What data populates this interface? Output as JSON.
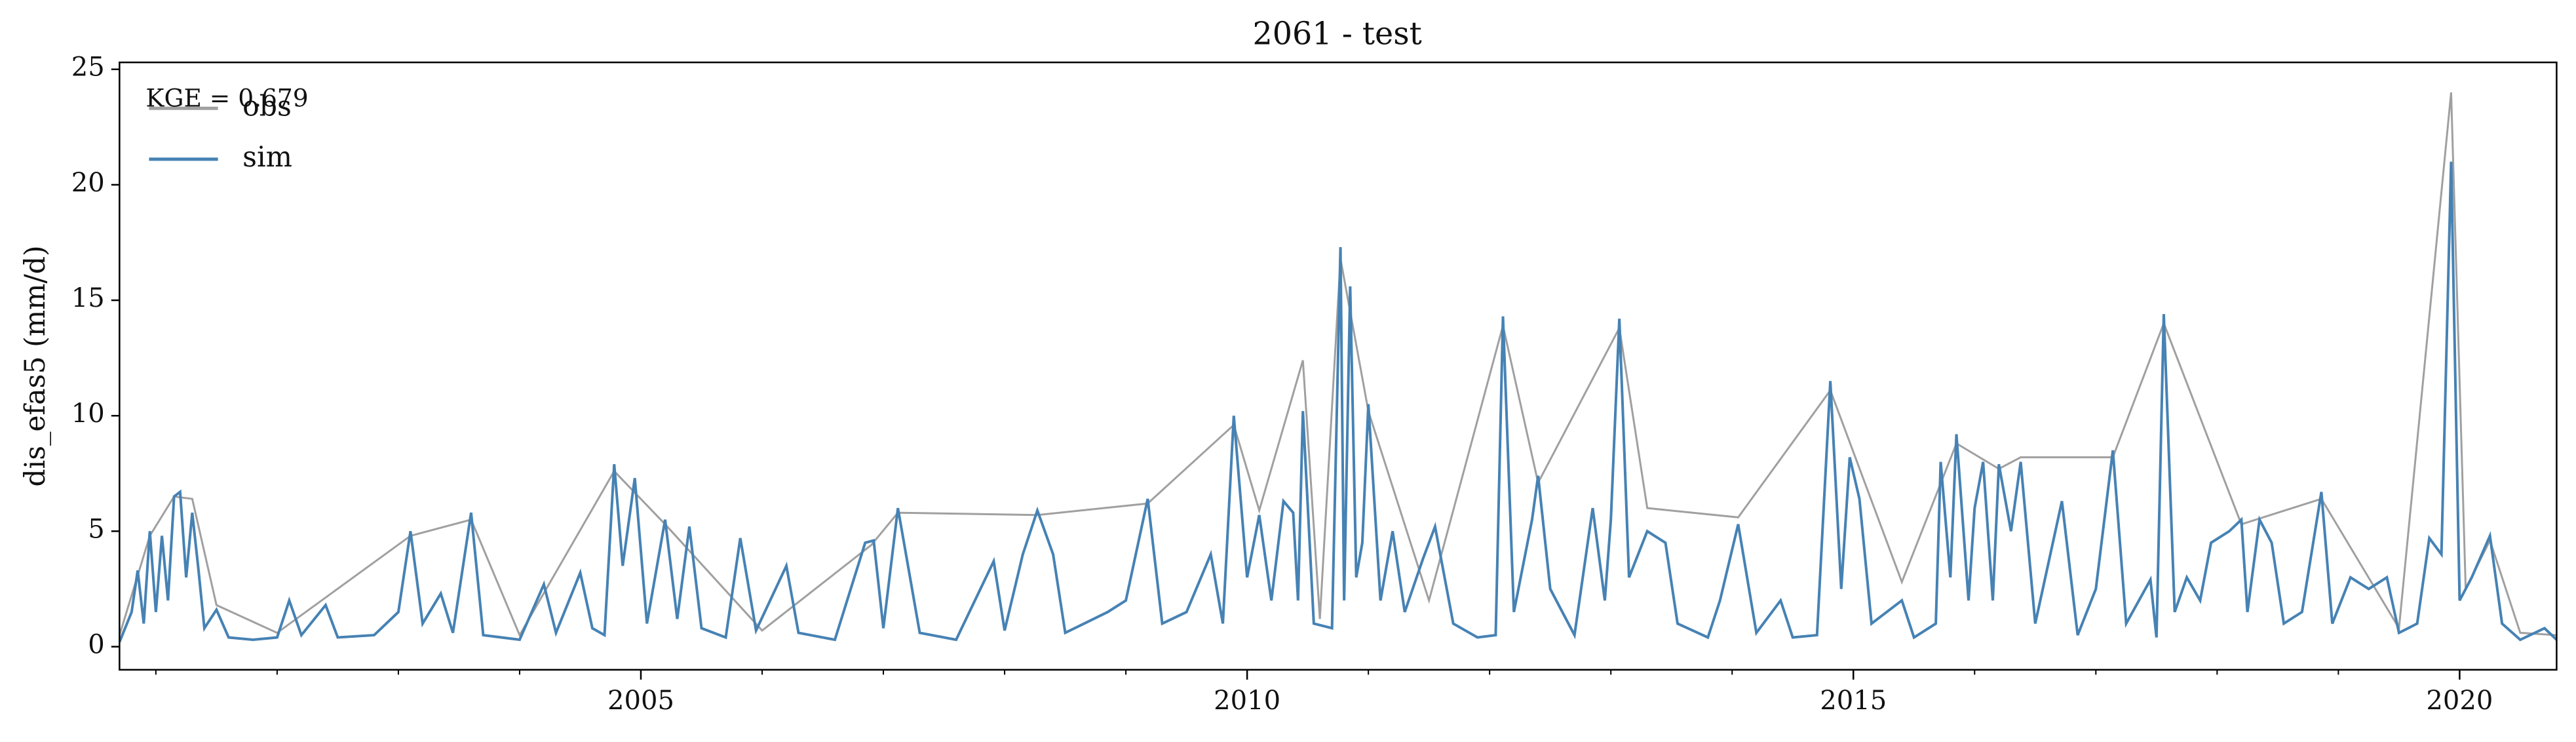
{
  "chart_data": {
    "type": "line",
    "title": "2061 - test",
    "ylabel": "dis_efas5 (mm/d)",
    "annotation": "KGE = 0.679",
    "legend": "upper left",
    "xlim": [
      2000.7,
      2020.8
    ],
    "xticks": [
      2005,
      2010,
      2015,
      2020
    ],
    "xminorticks": [
      2001,
      2002,
      2003,
      2004,
      2006,
      2007,
      2008,
      2009,
      2011,
      2012,
      2013,
      2014,
      2016,
      2017,
      2018,
      2019
    ],
    "ylim": [
      -1,
      25.3
    ],
    "yticks": [
      0,
      5,
      10,
      15,
      20,
      25
    ],
    "grid": false,
    "series": [
      {
        "name": "obs",
        "color": "#a0a0a0",
        "x": [
          2000.7,
          2000.95,
          2001.15,
          2001.3,
          2001.5,
          2002.0,
          2003.1,
          2003.6,
          2004.0,
          2004.78,
          2005.2,
          2006.0,
          2006.9,
          2007.12,
          2008.27,
          2009.18,
          2009.89,
          2010.1,
          2010.46,
          2010.6,
          2010.77,
          2011.0,
          2011.5,
          2012.11,
          2012.4,
          2013.07,
          2013.3,
          2014.05,
          2014.81,
          2015.4,
          2015.85,
          2016.2,
          2016.38,
          2017.14,
          2017.56,
          2018.2,
          2018.86,
          2019.5,
          2019.93,
          2020.05,
          2020.25,
          2020.5,
          2020.8
        ],
        "values": [
          0.5,
          4.8,
          6.5,
          6.4,
          1.8,
          0.6,
          4.8,
          5.5,
          0.5,
          7.6,
          5.3,
          0.7,
          4.4,
          5.8,
          5.7,
          6.2,
          9.6,
          5.9,
          12.4,
          1.2,
          16.8,
          10.2,
          2.0,
          13.9,
          7.1,
          13.8,
          6.0,
          5.6,
          11.1,
          2.8,
          8.8,
          7.7,
          8.2,
          8.2,
          14.0,
          5.3,
          6.4,
          0.8,
          24.0,
          2.5,
          4.6,
          0.6,
          0.5
        ]
      },
      {
        "name": "sim",
        "color": "#4682b4",
        "x": [
          2000.7,
          2000.8,
          2000.85,
          2000.9,
          2000.95,
          2001.0,
          2001.05,
          2001.1,
          2001.15,
          2001.2,
          2001.25,
          2001.3,
          2001.35,
          2001.4,
          2001.5,
          2001.6,
          2001.8,
          2002.0,
          2002.1,
          2002.2,
          2002.4,
          2002.5,
          2002.8,
          2003.0,
          2003.1,
          2003.2,
          2003.35,
          2003.45,
          2003.6,
          2003.7,
          2004.0,
          2004.2,
          2004.3,
          2004.5,
          2004.6,
          2004.7,
          2004.78,
          2004.85,
          2004.95,
          2005.05,
          2005.2,
          2005.3,
          2005.4,
          2005.5,
          2005.7,
          2005.82,
          2005.95,
          2006.2,
          2006.3,
          2006.6,
          2006.85,
          2006.92,
          2007.0,
          2007.12,
          2007.3,
          2007.6,
          2007.91,
          2008.0,
          2008.15,
          2008.27,
          2008.4,
          2008.5,
          2008.85,
          2009.0,
          2009.18,
          2009.3,
          2009.5,
          2009.7,
          2009.8,
          2009.89,
          2010.0,
          2010.1,
          2010.2,
          2010.3,
          2010.38,
          2010.42,
          2010.46,
          2010.55,
          2010.7,
          2010.77,
          2010.8,
          2010.85,
          2010.9,
          2010.95,
          2011.0,
          2011.1,
          2011.2,
          2011.3,
          2011.45,
          2011.55,
          2011.7,
          2011.9,
          2012.05,
          2012.11,
          2012.2,
          2012.35,
          2012.4,
          2012.5,
          2012.7,
          2012.85,
          2012.95,
          2013.0,
          2013.07,
          2013.15,
          2013.3,
          2013.45,
          2013.55,
          2013.8,
          2013.9,
          2014.05,
          2014.2,
          2014.4,
          2014.5,
          2014.7,
          2014.81,
          2014.9,
          2014.97,
          2015.05,
          2015.15,
          2015.4,
          2015.5,
          2015.68,
          2015.72,
          2015.8,
          2015.85,
          2015.95,
          2016.0,
          2016.07,
          2016.15,
          2016.2,
          2016.3,
          2016.38,
          2016.5,
          2016.72,
          2016.85,
          2017.0,
          2017.14,
          2017.25,
          2017.45,
          2017.5,
          2017.56,
          2017.65,
          2017.75,
          2017.86,
          2017.95,
          2018.1,
          2018.2,
          2018.25,
          2018.35,
          2018.45,
          2018.55,
          2018.7,
          2018.86,
          2018.95,
          2019.1,
          2019.25,
          2019.4,
          2019.5,
          2019.65,
          2019.75,
          2019.85,
          2019.93,
          2020.0,
          2020.1,
          2020.25,
          2020.35,
          2020.5,
          2020.7,
          2020.8
        ],
        "values": [
          0.2,
          1.5,
          3.3,
          1.0,
          5.0,
          1.5,
          4.8,
          2.0,
          6.5,
          6.7,
          3.0,
          5.8,
          3.4,
          0.8,
          1.6,
          0.4,
          0.3,
          0.4,
          2.0,
          0.5,
          1.8,
          0.4,
          0.5,
          1.5,
          5.0,
          1.0,
          2.3,
          0.6,
          5.8,
          0.5,
          0.3,
          2.7,
          0.6,
          3.2,
          0.8,
          0.5,
          7.9,
          3.5,
          7.3,
          1.0,
          5.5,
          1.2,
          5.2,
          0.8,
          0.4,
          4.7,
          0.7,
          3.5,
          0.6,
          0.3,
          4.5,
          4.6,
          0.8,
          6.0,
          0.6,
          0.3,
          3.7,
          0.7,
          4.0,
          5.9,
          4.0,
          0.6,
          1.5,
          2.0,
          6.4,
          1.0,
          1.5,
          4.0,
          1.0,
          10.0,
          3.0,
          5.7,
          2.0,
          6.3,
          5.8,
          2.0,
          10.2,
          1.0,
          0.8,
          17.3,
          2.0,
          15.6,
          3.0,
          4.5,
          10.5,
          2.0,
          5.0,
          1.5,
          3.8,
          5.2,
          1.0,
          0.4,
          0.5,
          14.3,
          1.5,
          5.5,
          7.4,
          2.5,
          0.5,
          6.0,
          2.0,
          5.5,
          14.2,
          3.0,
          5.0,
          4.5,
          1.0,
          0.4,
          2.0,
          5.3,
          0.6,
          2.0,
          0.4,
          0.5,
          11.5,
          2.5,
          8.2,
          6.4,
          1.0,
          2.0,
          0.4,
          1.0,
          8.0,
          3.0,
          9.2,
          2.0,
          6.0,
          8.0,
          2.0,
          7.9,
          5.0,
          8.0,
          1.0,
          6.3,
          0.5,
          2.5,
          8.5,
          1.0,
          2.9,
          0.4,
          14.4,
          1.5,
          3.0,
          2.0,
          4.5,
          5.0,
          5.5,
          1.5,
          5.5,
          4.5,
          1.0,
          1.5,
          6.7,
          1.0,
          3.0,
          2.5,
          3.0,
          0.6,
          1.0,
          4.7,
          4.0,
          21.0,
          2.0,
          3.0,
          4.8,
          1.0,
          0.3,
          0.8,
          0.3
        ]
      }
    ]
  }
}
